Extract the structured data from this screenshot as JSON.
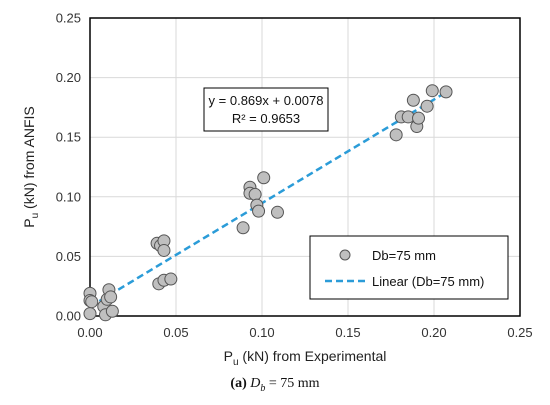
{
  "chart_data": {
    "type": "scatter",
    "xlabel_main": "P",
    "xlabel_sub": "u",
    "xlabel_rest": " (kN) from Experimental",
    "ylabel_main": "P",
    "ylabel_sub": "u",
    "ylabel_rest": " (kN) from ANFIS",
    "xlim": [
      0,
      0.25
    ],
    "ylim": [
      0,
      0.25
    ],
    "xticks": [
      "0.00",
      "0.05",
      "0.10",
      "0.15",
      "0.20",
      "0.25"
    ],
    "yticks": [
      "0.00",
      "0.05",
      "0.10",
      "0.15",
      "0.20",
      "0.25"
    ],
    "grid": true,
    "series": [
      {
        "name": "Db=75 mm",
        "color": "#bfbfbf",
        "points": [
          [
            0.0,
            0.019
          ],
          [
            0.0,
            0.013
          ],
          [
            0.0,
            0.002
          ],
          [
            0.001,
            0.012
          ],
          [
            0.008,
            0.008
          ],
          [
            0.009,
            0.001
          ],
          [
            0.01,
            0.014
          ],
          [
            0.011,
            0.022
          ],
          [
            0.012,
            0.016
          ],
          [
            0.013,
            0.004
          ],
          [
            0.039,
            0.061
          ],
          [
            0.041,
            0.059
          ],
          [
            0.043,
            0.063
          ],
          [
            0.043,
            0.055
          ],
          [
            0.04,
            0.027
          ],
          [
            0.043,
            0.03
          ],
          [
            0.047,
            0.031
          ],
          [
            0.089,
            0.074
          ],
          [
            0.093,
            0.108
          ],
          [
            0.093,
            0.103
          ],
          [
            0.096,
            0.102
          ],
          [
            0.097,
            0.093
          ],
          [
            0.098,
            0.088
          ],
          [
            0.101,
            0.116
          ],
          [
            0.109,
            0.087
          ],
          [
            0.178,
            0.152
          ],
          [
            0.181,
            0.167
          ],
          [
            0.185,
            0.167
          ],
          [
            0.188,
            0.181
          ],
          [
            0.19,
            0.159
          ],
          [
            0.191,
            0.166
          ],
          [
            0.196,
            0.176
          ],
          [
            0.199,
            0.189
          ],
          [
            0.207,
            0.188
          ]
        ]
      }
    ],
    "trendline": {
      "name": "Linear (Db=75 mm)",
      "color": "#2b9cd8",
      "slope": 0.869,
      "intercept": 0.0078,
      "x_range": [
        0,
        0.207
      ]
    },
    "equation_line1": "y = 0.869x + 0.0078",
    "equation_line2": "R² = 0.9653",
    "legend_position": "lower-right"
  },
  "caption": {
    "label": "(a)",
    "var": "D",
    "sub": "b",
    "value": " = 75 mm"
  }
}
